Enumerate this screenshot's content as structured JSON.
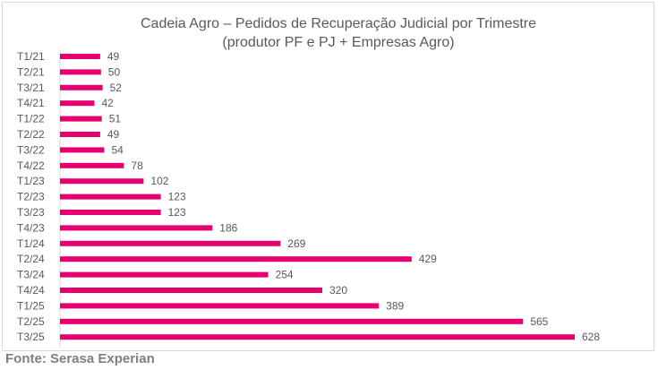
{
  "chart_data": {
    "type": "bar",
    "orientation": "horizontal",
    "title": "Cadeia Agro – Pedidos de Recuperação Judicial por Trimestre",
    "subtitle": "(produtor PF e PJ + Empresas Agro)",
    "categories": [
      "T1/21",
      "T2/21",
      "T3/21",
      "T4/21",
      "T1/22",
      "T2/22",
      "T3/22",
      "T4/22",
      "T1/23",
      "T2/23",
      "T3/23",
      "T4/23",
      "T1/24",
      "T2/24",
      "T3/24",
      "T4/24",
      "T1/25",
      "T2/25",
      "T3/25"
    ],
    "values": [
      49,
      50,
      52,
      42,
      51,
      49,
      54,
      78,
      102,
      123,
      123,
      186,
      269,
      429,
      254,
      320,
      389,
      565,
      628
    ],
    "xlim": [
      0,
      628
    ],
    "grid": false,
    "legend": "none",
    "bar_color": "#e6006f",
    "data_labels": true
  },
  "source": "Fonte: Serasa Experian"
}
